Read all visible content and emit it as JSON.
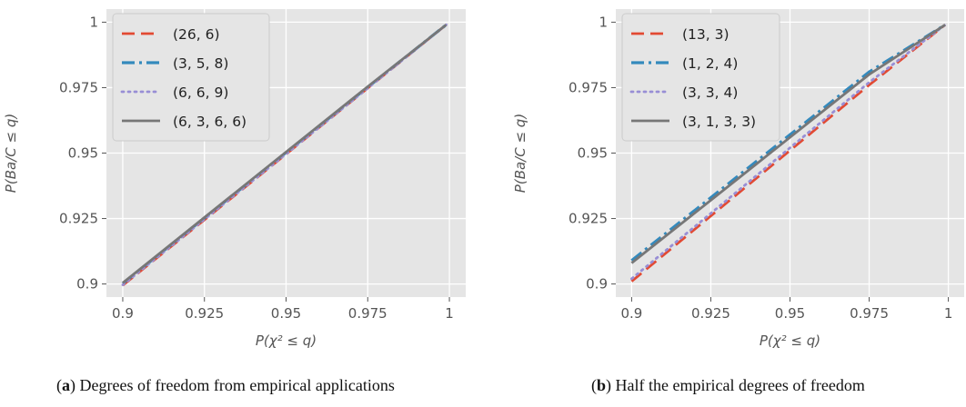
{
  "chart_data": [
    {
      "type": "line",
      "xlabel": "P(χ² ≤ q)",
      "ylabel": "P(Ba/C ≤ q)",
      "xlim": [
        0.9,
        1.0
      ],
      "ylim": [
        0.9,
        1.0
      ],
      "x_ticks": [
        "0.9",
        "0.925",
        "0.95",
        "0.975",
        "1"
      ],
      "y_ticks": [
        "0.9",
        "0.925",
        "0.95",
        "0.975",
        "1"
      ],
      "grid": true,
      "legend_position": "top-left",
      "x": [
        0.9,
        0.925,
        0.95,
        0.975,
        0.999
      ],
      "series": [
        {
          "name": "(26, 6)",
          "color": "#e24a33",
          "style": "dashed",
          "values": [
            0.8995,
            0.9245,
            0.9496,
            0.9748,
            0.999
          ]
        },
        {
          "name": "(3, 5, 8)",
          "color": "#348abd",
          "style": "dashdot",
          "values": [
            0.9002,
            0.9252,
            0.9502,
            0.9752,
            0.999
          ]
        },
        {
          "name": "(6, 6, 9)",
          "color": "#988ed5",
          "style": "dotted",
          "values": [
            0.8997,
            0.9247,
            0.9497,
            0.9748,
            0.999
          ]
        },
        {
          "name": "(6, 3, 6, 6)",
          "color": "#777777",
          "style": "solid",
          "values": [
            0.9004,
            0.9254,
            0.9504,
            0.9754,
            0.999
          ]
        }
      ],
      "caption_label": "a",
      "caption_text": " Degrees of freedom from empirical applications"
    },
    {
      "type": "line",
      "xlabel": "P(χ² ≤ q)",
      "ylabel": "P(Ba/C ≤ q)",
      "xlim": [
        0.9,
        1.0
      ],
      "ylim": [
        0.9,
        1.0
      ],
      "x_ticks": [
        "0.9",
        "0.925",
        "0.95",
        "0.975",
        "1"
      ],
      "y_ticks": [
        "0.9",
        "0.925",
        "0.95",
        "0.975",
        "1"
      ],
      "grid": true,
      "legend_position": "top-left",
      "x": [
        0.9,
        0.925,
        0.95,
        0.975,
        0.999
      ],
      "series": [
        {
          "name": "(13, 3)",
          "color": "#e24a33",
          "style": "dashed",
          "values": [
            0.901,
            0.926,
            0.951,
            0.976,
            0.999
          ]
        },
        {
          "name": "(1, 2, 4)",
          "color": "#348abd",
          "style": "dashdot",
          "values": [
            0.909,
            0.933,
            0.957,
            0.981,
            0.999
          ]
        },
        {
          "name": "(3, 3, 4)",
          "color": "#988ed5",
          "style": "dotted",
          "values": [
            0.902,
            0.927,
            0.952,
            0.977,
            0.999
          ]
        },
        {
          "name": "(3, 1, 3, 3)",
          "color": "#777777",
          "style": "solid",
          "values": [
            0.908,
            0.932,
            0.956,
            0.98,
            0.999
          ]
        }
      ],
      "caption_label": "b",
      "caption_text": " Half the empirical degrees of freedom"
    }
  ]
}
